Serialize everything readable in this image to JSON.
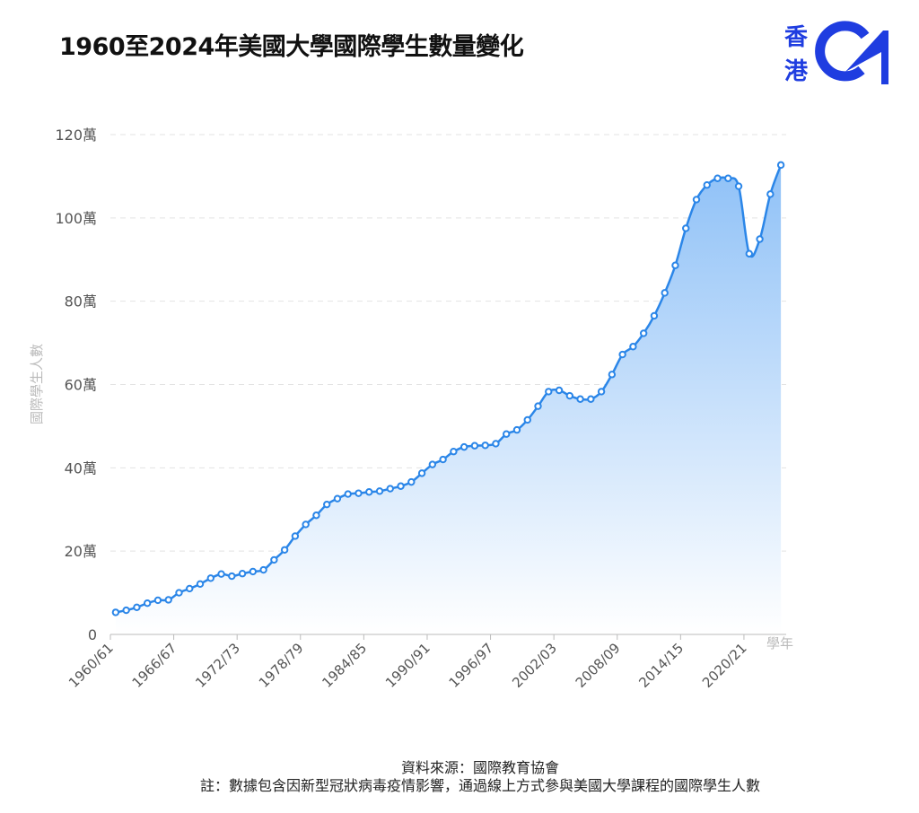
{
  "title": "1960至2024年美國大學國際學生數量變化",
  "logo": {
    "text": "香港01",
    "color": "#1f3de0"
  },
  "footer": {
    "source": "資料來源：國際教育協會",
    "note": "註：數據包含因新型冠狀病毒疫情影響，通過線上方式參與美國大學課程的國際學生人數"
  },
  "chart_data": {
    "type": "area",
    "title": "1960至2024年美國大學國際學生數量變化",
    "xlabel": "學年",
    "ylabel": "國際學生人數",
    "unit": "萬",
    "ylim": [
      0,
      120
    ],
    "yticks": [
      "0",
      "20萬",
      "40萬",
      "60萬",
      "80萬",
      "100萬",
      "120萬"
    ],
    "grid": true,
    "line_color": "#2b86e8",
    "fill_color_top": "#8fc1f7",
    "fill_color_bottom": "#ffffff",
    "xticks": [
      "1960/61",
      "1966/67",
      "1972/73",
      "1978/79",
      "1984/85",
      "1990/91",
      "1996/97",
      "2002/03",
      "2008/09",
      "2014/15",
      "2020/21"
    ],
    "x": [
      "1960/61",
      "1961/62",
      "1962/63",
      "1963/64",
      "1964/65",
      "1965/66",
      "1966/67",
      "1967/68",
      "1968/69",
      "1969/70",
      "1970/71",
      "1971/72",
      "1972/73",
      "1973/74",
      "1974/75",
      "1975/76",
      "1976/77",
      "1977/78",
      "1978/79",
      "1979/80",
      "1980/81",
      "1981/82",
      "1982/83",
      "1983/84",
      "1984/85",
      "1985/86",
      "1986/87",
      "1987/88",
      "1988/89",
      "1989/90",
      "1990/91",
      "1991/92",
      "1992/93",
      "1993/94",
      "1994/95",
      "1995/96",
      "1996/97",
      "1997/98",
      "1998/99",
      "1999/00",
      "2000/01",
      "2001/02",
      "2002/03",
      "2003/04",
      "2004/05",
      "2005/06",
      "2006/07",
      "2007/08",
      "2008/09",
      "2009/10",
      "2010/11",
      "2011/12",
      "2012/13",
      "2013/14",
      "2014/15",
      "2015/16",
      "2016/17",
      "2017/18",
      "2018/19",
      "2019/20",
      "2020/21",
      "2021/22",
      "2022/23",
      "2023/24"
    ],
    "values": [
      5.3,
      5.8,
      6.5,
      7.5,
      8.2,
      8.3,
      10.0,
      11.0,
      12.1,
      13.5,
      14.5,
      14.0,
      14.6,
      15.1,
      15.5,
      17.9,
      20.3,
      23.6,
      26.4,
      28.6,
      31.2,
      32.6,
      33.7,
      33.9,
      34.2,
      34.4,
      35.0,
      35.6,
      36.6,
      38.7,
      40.8,
      42.0,
      43.9,
      45.0,
      45.3,
      45.4,
      45.8,
      48.1,
      49.1,
      51.5,
      54.8,
      58.3,
      58.6,
      57.3,
      56.5,
      56.5,
      58.3,
      62.4,
      67.2,
      69.1,
      72.3,
      76.5,
      82.0,
      88.6,
      97.5,
      104.4,
      107.9,
      109.5,
      109.5,
      107.6,
      91.4,
      94.9,
      105.7,
      112.7
    ]
  }
}
